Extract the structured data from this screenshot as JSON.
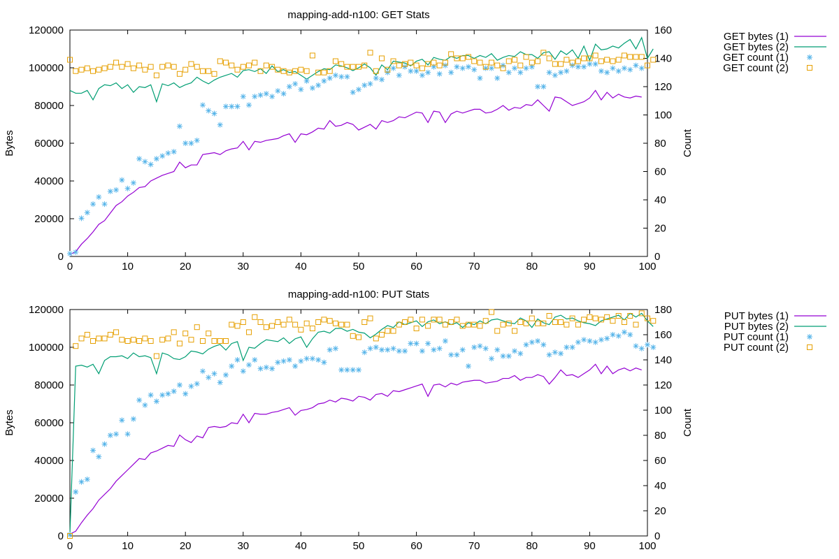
{
  "chart_data": [
    {
      "type": "line",
      "title": "mapping-add-n100: GET Stats",
      "ylabel": "Bytes",
      "y2label": "Count",
      "xlim": [
        0,
        100
      ],
      "ylim": [
        0,
        120000
      ],
      "y2lim": [
        0,
        160
      ],
      "x_ticks": [
        "0",
        "10",
        "20",
        "30",
        "40",
        "50",
        "60",
        "70",
        "80",
        "90",
        "100"
      ],
      "y_ticks": [
        "0",
        "20000",
        "40000",
        "60000",
        "80000",
        "100000",
        "120000"
      ],
      "y2_ticks": [
        "0",
        "20",
        "40",
        "60",
        "80",
        "100",
        "120",
        "140",
        "160"
      ],
      "grid": false,
      "legend_position": "right",
      "series": [
        {
          "name": "GET bytes (1)",
          "style": "line",
          "axis": "y1",
          "color": "#9400d3",
          "values": [
            1000,
            2500,
            6500,
            9500,
            13000,
            17000,
            19000,
            23000,
            27000,
            29000,
            32000,
            34000,
            36500,
            37000,
            40000,
            41500,
            43000,
            44000,
            45000,
            50000,
            47000,
            48500,
            48500,
            54000,
            54500,
            55000,
            54000,
            56000,
            57000,
            57500,
            61000,
            56500,
            61000,
            60500,
            61500,
            62000,
            62500,
            64000,
            65000,
            60500,
            65000,
            64500,
            66000,
            68000,
            67500,
            72000,
            69000,
            69500,
            71000,
            70000,
            67000,
            68500,
            70000,
            67500,
            72000,
            71000,
            72000,
            74000,
            73500,
            75000,
            76500,
            76000,
            71000,
            77000,
            76500,
            71000,
            75500,
            77000,
            76000,
            77000,
            78000,
            78000,
            76000,
            76500,
            78000,
            80000,
            77500,
            79000,
            78500,
            80500,
            80000,
            83000,
            80000,
            77000,
            84500,
            84000,
            82000,
            80000,
            81000,
            82000,
            84000,
            88000,
            83000,
            87000,
            84000,
            86000,
            84500,
            84000,
            85000,
            84500
          ]
        },
        {
          "name": "GET bytes (2)",
          "style": "line",
          "axis": "y1",
          "color": "#009e73",
          "values": [
            88000,
            86500,
            86500,
            88000,
            83000,
            89000,
            91000,
            90500,
            92000,
            89000,
            91000,
            87000,
            90000,
            89500,
            91000,
            82000,
            91500,
            90500,
            92000,
            89500,
            91000,
            92000,
            95000,
            93000,
            91500,
            93500,
            95000,
            96000,
            97000,
            95000,
            98500,
            99000,
            98000,
            99500,
            97000,
            101000,
            98000,
            99000,
            97500,
            98000,
            96000,
            94000,
            96000,
            98000,
            99500,
            99000,
            101500,
            101000,
            100000,
            98500,
            100000,
            102000,
            100000,
            96000,
            101500,
            99000,
            103500,
            103000,
            102500,
            101000,
            103500,
            104500,
            101500,
            105500,
            104500,
            104000,
            106000,
            105000,
            106500,
            106500,
            105000,
            106500,
            105500,
            107500,
            104000,
            105500,
            106500,
            106000,
            108500,
            107000,
            107000,
            105000,
            108000,
            108500,
            104500,
            109000,
            107000,
            109500,
            105000,
            111500,
            104000,
            112500,
            109500,
            110000,
            111500,
            110500,
            113000,
            115000,
            110000,
            116000,
            105000,
            110000
          ]
        },
        {
          "name": "GET count (1)",
          "style": "star",
          "axis": "y2",
          "color": "#56b4e9",
          "values": [
            2,
            3,
            27,
            31,
            37,
            42,
            37,
            46,
            47,
            54,
            48,
            52,
            69,
            67,
            65,
            69,
            71,
            73,
            74,
            92,
            80,
            80,
            82,
            107,
            103,
            101,
            93,
            106,
            106,
            106,
            113,
            107,
            113,
            114,
            115,
            113,
            117,
            115,
            120,
            122,
            118,
            124,
            119,
            121,
            124,
            126,
            128,
            127,
            127,
            116,
            118,
            121,
            122,
            126,
            125,
            130,
            133,
            128,
            134,
            131,
            131,
            128,
            130,
            134,
            129,
            135,
            130,
            134,
            133,
            134,
            132,
            126,
            133,
            133,
            126,
            135,
            130,
            133,
            130,
            133,
            134,
            120,
            120,
            130,
            128,
            130,
            131,
            135,
            134,
            134,
            136,
            136,
            131,
            130,
            133,
            131,
            133,
            132,
            135,
            133
          ]
        },
        {
          "name": "GET count (2)",
          "style": "square",
          "axis": "y2",
          "color": "#e69f00",
          "values": [
            139,
            131,
            132,
            133,
            131,
            132,
            133,
            134,
            137,
            134,
            136,
            133,
            135,
            132,
            134,
            128,
            134,
            135,
            134,
            129,
            132,
            136,
            134,
            131,
            131,
            129,
            138,
            137,
            135,
            132,
            134,
            135,
            137,
            131,
            135,
            134,
            132,
            131,
            130,
            131,
            132,
            131,
            142,
            130,
            130,
            131,
            138,
            136,
            134,
            134,
            134,
            135,
            144,
            131,
            140,
            132,
            138,
            135,
            136,
            137,
            135,
            133,
            136,
            137,
            135,
            137,
            143,
            140,
            140,
            141,
            138,
            137,
            134,
            137,
            135,
            133,
            138,
            139,
            135,
            141,
            137,
            138,
            144,
            140,
            136,
            136,
            139,
            137,
            138,
            140,
            140,
            142,
            138,
            139,
            138,
            139,
            142,
            141,
            141,
            141,
            135,
            139
          ]
        }
      ]
    },
    {
      "type": "line",
      "title": "mapping-add-n100: PUT Stats",
      "ylabel": "Bytes",
      "y2label": "Count",
      "xlim": [
        0,
        100
      ],
      "ylim": [
        0,
        120000
      ],
      "y2lim": [
        0,
        180
      ],
      "x_ticks": [
        "0",
        "10",
        "20",
        "30",
        "40",
        "50",
        "60",
        "70",
        "80",
        "90",
        "100"
      ],
      "y_ticks": [
        "0",
        "20000",
        "40000",
        "60000",
        "80000",
        "100000",
        "120000"
      ],
      "y2_ticks": [
        "0",
        "20",
        "40",
        "60",
        "80",
        "100",
        "120",
        "140",
        "160",
        "180"
      ],
      "grid": false,
      "legend_position": "right",
      "series": [
        {
          "name": "PUT bytes (1)",
          "style": "line",
          "axis": "y1",
          "color": "#9400d3",
          "values": [
            1000,
            2500,
            7000,
            11000,
            14500,
            19000,
            22000,
            25000,
            29000,
            32000,
            35000,
            38000,
            41000,
            40500,
            44000,
            45000,
            46500,
            48000,
            47500,
            53500,
            51000,
            49500,
            53000,
            52000,
            57500,
            58000,
            57500,
            58000,
            60000,
            59500,
            64500,
            60000,
            65000,
            64500,
            64500,
            65500,
            66000,
            67000,
            68000,
            64000,
            66500,
            67000,
            68000,
            70000,
            70500,
            72000,
            71000,
            73000,
            72500,
            71500,
            74000,
            73500,
            72000,
            75000,
            75500,
            74000,
            77000,
            76500,
            77500,
            78500,
            79500,
            80500,
            74000,
            80000,
            80500,
            79000,
            81000,
            80000,
            81500,
            82000,
            82500,
            82500,
            81000,
            81500,
            82000,
            83500,
            83500,
            85000,
            82500,
            84000,
            84000,
            85500,
            84500,
            80500,
            84000,
            88000,
            85000,
            85500,
            84000,
            86000,
            88000,
            91000,
            86000,
            90000,
            86000,
            88000,
            89000,
            87500,
            89000,
            88000
          ]
        },
        {
          "name": "PUT bytes (2)",
          "style": "line",
          "axis": "y1",
          "color": "#009e73",
          "values": [
            1000,
            90000,
            90500,
            89500,
            91000,
            86000,
            93000,
            95000,
            95000,
            95500,
            94000,
            97000,
            95000,
            95500,
            94500,
            86000,
            97000,
            96000,
            94000,
            93500,
            95000,
            98000,
            97500,
            96500,
            99000,
            100500,
            101500,
            98500,
            102000,
            103000,
            93000,
            100000,
            99500,
            102000,
            104000,
            103500,
            103000,
            105000,
            102000,
            104500,
            105500,
            100000,
            104500,
            108000,
            108500,
            107500,
            110000,
            110000,
            108500,
            109500,
            108000,
            107500,
            105000,
            107000,
            109500,
            111500,
            110500,
            113500,
            112000,
            113000,
            114000,
            111000,
            113500,
            114500,
            112500,
            113500,
            112000,
            113000,
            110500,
            113000,
            112000,
            114000,
            112500,
            114500,
            115000,
            114000,
            113000,
            112500,
            115500,
            114000,
            110500,
            115000,
            113000,
            112000,
            116000,
            117000,
            115000,
            115500,
            114000,
            113000,
            112500,
            111500,
            114000,
            115000,
            116000,
            117000,
            114500,
            118000,
            116000,
            118000,
            114000,
            111000
          ]
        },
        {
          "name": "PUT count (1)",
          "style": "star",
          "axis": "y2",
          "color": "#56b4e9",
          "values": [
            1,
            35,
            43,
            45,
            68,
            63,
            73,
            80,
            81,
            92,
            81,
            93,
            108,
            104,
            112,
            107,
            112,
            113,
            115,
            120,
            113,
            119,
            121,
            131,
            126,
            129,
            122,
            128,
            135,
            140,
            131,
            136,
            140,
            133,
            134,
            133,
            138,
            139,
            140,
            135,
            139,
            141,
            141,
            140,
            138,
            148,
            149,
            132,
            132,
            132,
            132,
            146,
            149,
            150,
            148,
            148,
            149,
            147,
            147,
            153,
            153,
            147,
            153,
            148,
            149,
            155,
            144,
            144,
            148,
            135,
            150,
            151,
            149,
            141,
            148,
            143,
            143,
            147,
            145,
            152,
            154,
            155,
            152,
            144,
            146,
            145,
            150,
            150,
            154,
            156,
            155,
            154,
            156,
            157,
            160,
            159,
            162,
            160,
            151,
            149,
            152,
            150
          ]
        },
        {
          "name": "PUT count (2)",
          "style": "square",
          "axis": "y2",
          "color": "#e69f00",
          "values": [
            0,
            151,
            157,
            160,
            155,
            157,
            157,
            160,
            162,
            156,
            155,
            156,
            155,
            157,
            155,
            143,
            156,
            157,
            162,
            153,
            161,
            156,
            166,
            155,
            161,
            155,
            155,
            155,
            168,
            167,
            170,
            162,
            174,
            170,
            166,
            167,
            170,
            168,
            172,
            168,
            164,
            169,
            165,
            170,
            172,
            171,
            169,
            168,
            168,
            159,
            158,
            170,
            173,
            157,
            160,
            163,
            163,
            168,
            170,
            172,
            165,
            172,
            167,
            172,
            172,
            168,
            170,
            172,
            167,
            168,
            168,
            167,
            171,
            178,
            163,
            168,
            169,
            163,
            170,
            169,
            173,
            169,
            169,
            175,
            170,
            170,
            168,
            173,
            168,
            172,
            174,
            173,
            172,
            174,
            171,
            175,
            170,
            175,
            168,
            177,
            173,
            171
          ]
        }
      ]
    }
  ]
}
